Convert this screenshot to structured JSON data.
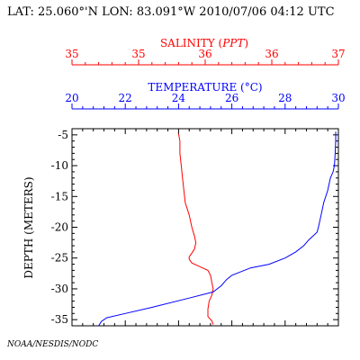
{
  "header": {
    "text": "LAT: 25.060°'N LON: 83.091°W 2010/07/06 04:12 UTC"
  },
  "credit": "NOAA/NESDIS/NODC",
  "colors": {
    "salinity": "#ff0000",
    "temperature": "#0000ff",
    "frame": "#000000"
  },
  "chart_data": {
    "type": "line",
    "xlim_salinity": [
      35,
      37
    ],
    "xlim_temperature": [
      20,
      30
    ],
    "ylim": [
      -36,
      -4
    ],
    "salinity_ticks": [
      "35",
      "35",
      "36",
      "36",
      "37"
    ],
    "temperature_ticks": [
      "20",
      "22",
      "24",
      "26",
      "28",
      "30"
    ],
    "depth_ticks": [
      "-5",
      "-10",
      "-15",
      "-20",
      "-25",
      "-30",
      "-35"
    ],
    "salinity_axis_label": {
      "name": "SALINITY",
      "unit": "PPT"
    },
    "temperature_axis_label": {
      "name": "TEMPERATURE",
      "unit": "°C"
    },
    "ylabel": "DEPTH (METERS)",
    "grid": false,
    "series": [
      {
        "name": "SALINITY",
        "axis": "salinity",
        "x": [
          35.8,
          35.81,
          35.81,
          35.82,
          35.83,
          35.84,
          35.85,
          35.88,
          35.9,
          35.92,
          35.93,
          35.92,
          35.9,
          35.88,
          35.88,
          35.9,
          35.94,
          35.98,
          36.02,
          36.04,
          36.05,
          36.06,
          36.05,
          36.03,
          36.02,
          36.02,
          36.05,
          36.06
        ],
        "y": [
          -4.8,
          -6,
          -8,
          -10,
          -12,
          -14,
          -16,
          -18,
          -20,
          -21.5,
          -22.5,
          -23.5,
          -24.2,
          -24.8,
          -25.2,
          -25.8,
          -26.2,
          -26.6,
          -27.0,
          -27.8,
          -29,
          -30,
          -31,
          -32,
          -33.3,
          -34.5,
          -35.2,
          -35.8
        ]
      },
      {
        "name": "TEMPERATURE",
        "axis": "temperature",
        "x": [
          29.9,
          29.9,
          29.88,
          29.85,
          29.8,
          29.7,
          29.6,
          29.45,
          29.35,
          29.3,
          29.25,
          29.2,
          29.1,
          28.9,
          28.7,
          28.4,
          28.0,
          27.4,
          26.7,
          26.0,
          25.8,
          25.6,
          25.3,
          24.4,
          23.0,
          22.0,
          21.3,
          21.1,
          21.0
        ],
        "y": [
          -4.5,
          -6,
          -8,
          -10,
          -11,
          -12,
          -14,
          -16,
          -18,
          -19,
          -20,
          -20.8,
          -21.2,
          -22,
          -23,
          -24,
          -25,
          -26,
          -26.6,
          -27.8,
          -28.5,
          -29.5,
          -30.5,
          -31.5,
          -33,
          -34,
          -34.7,
          -35.3,
          -36
        ]
      }
    ]
  }
}
